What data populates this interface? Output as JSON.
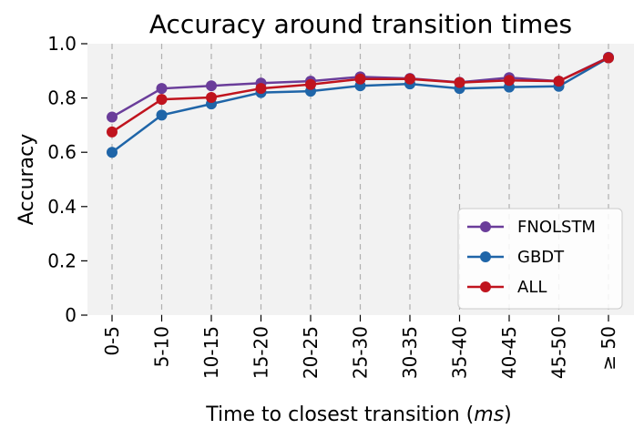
{
  "chart_data": {
    "type": "line",
    "title": "Accuracy around transition times",
    "xlabel_prefix": "Time to closest transition (",
    "xlabel_italic": "ms",
    "xlabel_suffix": ")",
    "ylabel": "Accuracy",
    "categories": [
      "0-5",
      "5-10",
      "10-15",
      "15-20",
      "20-25",
      "25-30",
      "30-35",
      "35-40",
      "40-45",
      "45-50",
      "≥ 50"
    ],
    "ylim": [
      0,
      1.0
    ],
    "yticks": [
      0,
      0.2,
      0.4,
      0.6,
      0.8,
      1.0
    ],
    "ytick_labels": [
      "0",
      "0.2",
      "0.4",
      "0.6",
      "0.8",
      "1.0"
    ],
    "grid": "vertical dashed",
    "legend_position": "lower-right",
    "series": [
      {
        "name": "FNOLSTM",
        "color": "#6a3d9a",
        "values": [
          0.73,
          0.835,
          0.845,
          0.855,
          0.862,
          0.878,
          0.872,
          0.858,
          0.875,
          0.862,
          0.95
        ]
      },
      {
        "name": "GBDT",
        "color": "#1f65a8",
        "values": [
          0.6,
          0.737,
          0.778,
          0.82,
          0.825,
          0.845,
          0.852,
          0.835,
          0.84,
          0.843,
          0.948
        ]
      },
      {
        "name": "ALL",
        "color": "#c0141e",
        "values": [
          0.675,
          0.795,
          0.802,
          0.835,
          0.85,
          0.87,
          0.87,
          0.857,
          0.865,
          0.862,
          0.948
        ]
      }
    ]
  }
}
